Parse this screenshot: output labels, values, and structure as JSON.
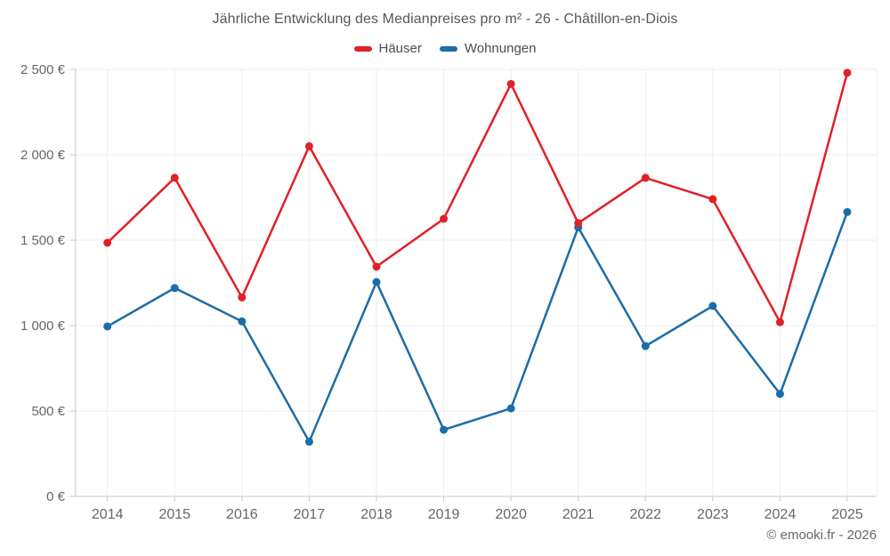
{
  "header": {
    "title": "Jährliche Entwicklung des Medianpreises pro m² - 26 - Châtillon-en-Diois"
  },
  "legend": {
    "items": [
      {
        "label": "Häuser",
        "color": "#e02127"
      },
      {
        "label": "Wohnungen",
        "color": "#1b6da6"
      }
    ]
  },
  "footer": {
    "credit": "© emooki.fr - 2026"
  },
  "chart_data": {
    "type": "line",
    "title": "Jährliche Entwicklung des Medianpreises pro m² - 26 - Châtillon-en-Diois",
    "xlabel": "",
    "ylabel": "",
    "categories": [
      "2014",
      "2015",
      "2016",
      "2017",
      "2018",
      "2019",
      "2020",
      "2021",
      "2022",
      "2023",
      "2024",
      "2025"
    ],
    "series": [
      {
        "name": "Häuser",
        "color": "#e02127",
        "values": [
          1485,
          1865,
          1165,
          2050,
          1345,
          1625,
          2415,
          1600,
          1865,
          1740,
          1020,
          2480
        ]
      },
      {
        "name": "Wohnungen",
        "color": "#1b6da6",
        "values": [
          995,
          1220,
          1025,
          320,
          1255,
          390,
          515,
          1575,
          880,
          1115,
          600,
          1665
        ]
      }
    ],
    "ylim": [
      0,
      2500
    ],
    "y_ticks": [
      {
        "value": 0,
        "label": "0 €"
      },
      {
        "value": 500,
        "label": "500 €"
      },
      {
        "value": 1000,
        "label": "1 000 €"
      },
      {
        "value": 1500,
        "label": "1 500 €"
      },
      {
        "value": 2000,
        "label": "2 000 €"
      },
      {
        "value": 2500,
        "label": "2 500 €"
      }
    ],
    "grid": true,
    "legend_position": "top",
    "currency_unit": "€"
  }
}
